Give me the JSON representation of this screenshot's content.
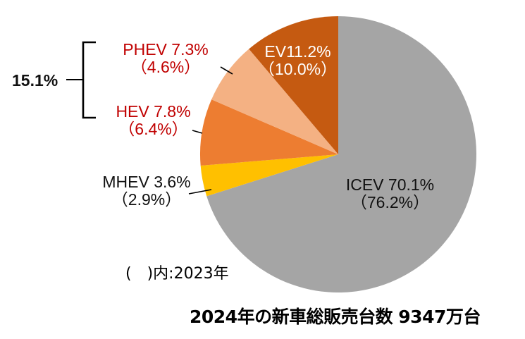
{
  "chart_data": {
    "type": "pie",
    "title": "2024年の新車総販売台数 9347万台",
    "note": "(　)内:2023年",
    "start_angle_deg": 0,
    "direction": "clockwise",
    "categories": [
      "ICEV",
      "MHEV",
      "HEV",
      "PHEV",
      "EV"
    ],
    "series": [
      {
        "name": "2024",
        "values": [
          70.1,
          3.6,
          7.8,
          7.3,
          11.2
        ]
      },
      {
        "name": "2023",
        "values": [
          76.2,
          2.9,
          6.4,
          4.6,
          10.0
        ]
      }
    ],
    "colors": [
      "#a5a5a5",
      "#ffc000",
      "#ed7d31",
      "#f4b183",
      "#c55a11"
    ],
    "group_annotation": {
      "members": [
        "PHEV",
        "HEV"
      ],
      "label": "15.1%"
    },
    "unit": "%"
  },
  "labels": {
    "icev": {
      "line1": "ICEV 70.1%",
      "line2": "（76.2%）"
    },
    "mhev": {
      "line1": "MHEV 3.6%",
      "line2": "（2.9%）"
    },
    "hev": {
      "line1": "HEV 7.8%",
      "line2": "（6.4%）"
    },
    "phev": {
      "line1": "PHEV 7.3%",
      "line2": "（4.6%）"
    },
    "ev": {
      "line1": "EV11.2%",
      "line2": "（10.0%）"
    }
  },
  "group_label": "15.1%",
  "note": "(　)内:2023年",
  "total_caption": "2024年の新車総販売台数 9347万台"
}
